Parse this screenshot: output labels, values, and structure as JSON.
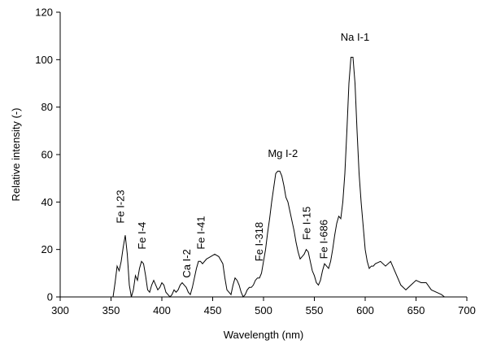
{
  "chart_data": {
    "type": "line",
    "title": "",
    "xlabel": "Wavelength (nm)",
    "ylabel": "Relative intensity (-)",
    "xlim": [
      300,
      700
    ],
    "ylim": [
      0,
      120
    ],
    "x_ticks": [
      300,
      350,
      400,
      450,
      500,
      550,
      600,
      650,
      700
    ],
    "y_ticks": [
      0,
      20,
      40,
      60,
      80,
      100,
      120
    ],
    "grid": false,
    "legend": "none",
    "line_color": "#000000",
    "series": [
      {
        "x": [
          352,
          354,
          356,
          358,
          360,
          362,
          364,
          366,
          368,
          370,
          372,
          374,
          376,
          378,
          380,
          382,
          384,
          386,
          388,
          390,
          392,
          394,
          396,
          398,
          400,
          402,
          404,
          406,
          408,
          410,
          412,
          414,
          416,
          418,
          420,
          422,
          424,
          426,
          428,
          430,
          432,
          434,
          436,
          438,
          440,
          444,
          448,
          452,
          456,
          460,
          462,
          464,
          466,
          468,
          470,
          472,
          474,
          476,
          478,
          480,
          482,
          484,
          486,
          488,
          490,
          492,
          494,
          496,
          498,
          500,
          502,
          504,
          506,
          508,
          510,
          512,
          514,
          516,
          518,
          520,
          522,
          524,
          526,
          528,
          530,
          532,
          534,
          536,
          538,
          540,
          542,
          544,
          546,
          548,
          550,
          552,
          554,
          556,
          558,
          560,
          562,
          564,
          566,
          568,
          570,
          572,
          574,
          576,
          578,
          580,
          582,
          584,
          586,
          588,
          590,
          592,
          594,
          596,
          598,
          600,
          602,
          604,
          606,
          608,
          610,
          615,
          620,
          625,
          630,
          635,
          640,
          645,
          650,
          655,
          660,
          665,
          670,
          675,
          678
        ],
        "y": [
          0,
          6,
          13,
          11,
          15,
          21,
          26,
          18,
          5,
          0,
          3,
          9,
          7,
          12,
          15,
          14,
          9,
          3,
          2,
          5,
          7,
          5,
          3,
          4,
          6,
          5,
          2,
          1,
          0,
          1,
          3,
          2,
          3,
          5,
          6,
          5,
          4,
          2,
          1,
          4,
          8,
          12,
          15,
          15,
          14,
          16,
          17,
          18,
          17,
          14,
          8,
          3,
          2,
          1,
          5,
          8,
          7,
          5,
          2,
          0,
          1,
          3,
          4,
          4,
          5,
          7,
          8,
          8,
          10,
          15,
          20,
          27,
          33,
          40,
          46,
          52,
          53,
          53,
          51,
          47,
          42,
          40,
          36,
          32,
          28,
          23,
          19,
          16,
          17,
          18,
          20,
          19,
          15,
          11,
          9,
          6,
          5,
          7,
          11,
          14,
          13,
          12,
          15,
          20,
          26,
          31,
          34,
          33,
          40,
          52,
          70,
          90,
          101,
          101,
          90,
          70,
          52,
          40,
          30,
          20,
          15,
          12,
          13,
          13,
          14,
          15,
          13,
          15,
          10,
          5,
          3,
          5,
          7,
          6,
          6,
          3,
          2,
          1,
          0
        ]
      }
    ],
    "annotations": [
      {
        "text": "Na I-1",
        "x": 590,
        "y": 108,
        "rotated": false
      },
      {
        "text": "Mg I-2",
        "x": 519,
        "y": 59,
        "rotated": false
      },
      {
        "text": "Fe I-23",
        "x": 363,
        "y": 31,
        "rotated": true
      },
      {
        "text": "Fe I-4",
        "x": 384,
        "y": 20,
        "rotated": true
      },
      {
        "text": "Ca I-2",
        "x": 428,
        "y": 8,
        "rotated": true
      },
      {
        "text": "Fe I-41",
        "x": 442,
        "y": 20,
        "rotated": true
      },
      {
        "text": "Fe I-318",
        "x": 499,
        "y": 15,
        "rotated": true
      },
      {
        "text": "Fe I-15",
        "x": 546,
        "y": 24,
        "rotated": true
      },
      {
        "text": "Fe I-686",
        "x": 563,
        "y": 16,
        "rotated": true
      }
    ]
  }
}
